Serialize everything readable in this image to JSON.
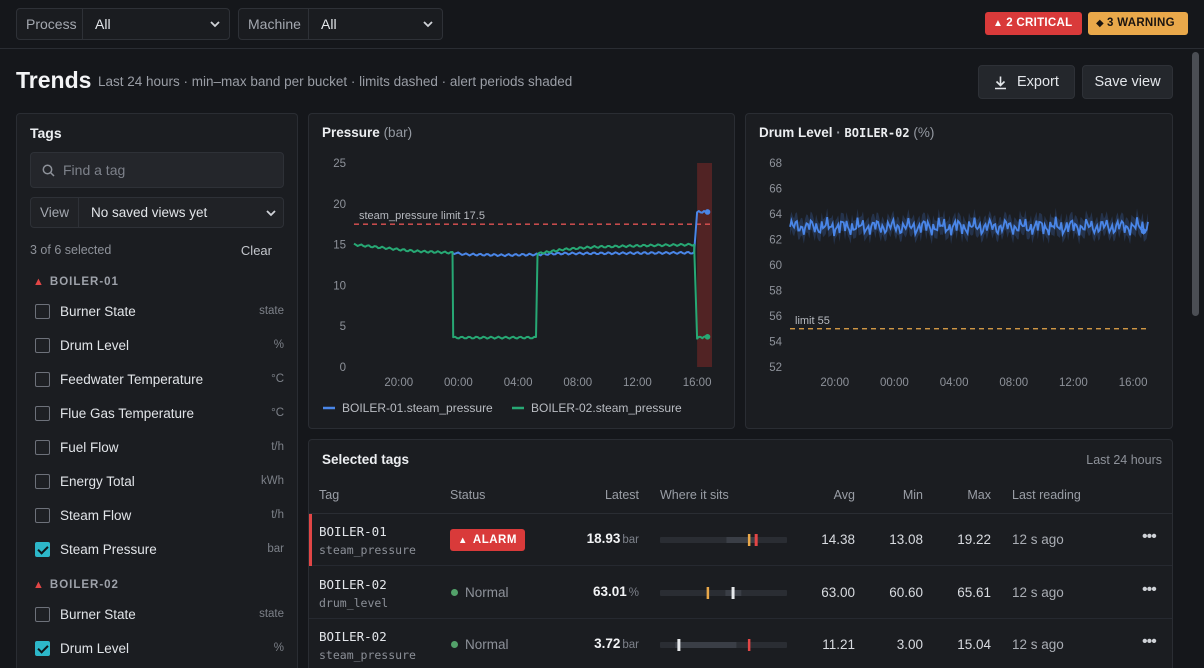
{
  "filters": {
    "process": {
      "label": "Process",
      "value": "All"
    },
    "machine": {
      "label": "Machine",
      "value": "All"
    }
  },
  "alerts": {
    "critical": "2 CRITICAL",
    "warning": "3 WARNING",
    "critical_color": "#d93a3a",
    "warning_color": "#e9a84a"
  },
  "header": {
    "title": "Trends",
    "subtitle": "Last 24 hours · min–max band per bucket · limits dashed · alert periods shaded",
    "export_label": "Export",
    "save_label": "Save view"
  },
  "tags_panel": {
    "title": "Tags",
    "search_placeholder": "Find a tag",
    "view_label": "View",
    "view_value": "No saved views yet",
    "selected_count": "3 of 6 selected",
    "clear_label": "Clear",
    "groups": [
      {
        "name": "BOILER-01",
        "tags": [
          {
            "name": "Burner State",
            "unit": "state",
            "checked": false
          },
          {
            "name": "Drum Level",
            "unit": "%",
            "checked": false
          },
          {
            "name": "Feedwater Temperature",
            "unit": "°C",
            "checked": false
          },
          {
            "name": "Flue Gas Temperature",
            "unit": "°C",
            "checked": false
          },
          {
            "name": "Fuel Flow",
            "unit": "t/h",
            "checked": false
          },
          {
            "name": "Energy Total",
            "unit": "kWh",
            "checked": false
          },
          {
            "name": "Steam Flow",
            "unit": "t/h",
            "checked": false
          },
          {
            "name": "Steam Pressure",
            "unit": "bar",
            "checked": true
          }
        ]
      },
      {
        "name": "BOILER-02",
        "tags": [
          {
            "name": "Burner State",
            "unit": "state",
            "checked": false
          },
          {
            "name": "Drum Level",
            "unit": "%",
            "checked": true
          }
        ]
      }
    ]
  },
  "chart_data": [
    {
      "type": "line",
      "title": "Pressure",
      "unit": "(bar)",
      "ylim": [
        0,
        25
      ],
      "yticks": [
        0,
        5,
        10,
        15,
        20,
        25
      ],
      "xlabels": [
        "20:00",
        "00:00",
        "04:00",
        "08:00",
        "12:00",
        "16:00"
      ],
      "x_hours_ticks": [
        20,
        24,
        28,
        32,
        36,
        40
      ],
      "xlim_hours": [
        17,
        41
      ],
      "limit": {
        "label": "steam_pressure limit 17.5",
        "value": 17.5,
        "color": "#e05252"
      },
      "alert_period_hours": [
        40.0,
        41.0
      ],
      "series": [
        {
          "name": "BOILER-01.steam_pressure",
          "color": "#4a86e8",
          "points": [
            [
              23.6,
              14.0
            ],
            [
              24.5,
              13.8
            ],
            [
              27,
              13.7
            ],
            [
              29.5,
              13.8
            ],
            [
              30.5,
              13.9
            ],
            [
              39.8,
              14.0
            ],
            [
              40.0,
              19.0
            ],
            [
              40.7,
              19.0
            ]
          ]
        },
        {
          "name": "BOILER-02.steam_pressure",
          "color": "#27a874",
          "points": [
            [
              17,
              15.0
            ],
            [
              19,
              14.6
            ],
            [
              21,
              14.2
            ],
            [
              23.6,
              14.0
            ],
            [
              23.65,
              3.6
            ],
            [
              29.2,
              3.6
            ],
            [
              29.3,
              13.9
            ],
            [
              31,
              14.4
            ],
            [
              33,
              14.7
            ],
            [
              35,
              14.8
            ],
            [
              37,
              14.9
            ],
            [
              39.8,
              15.0
            ],
            [
              40.0,
              3.6
            ],
            [
              40.7,
              3.7
            ]
          ]
        }
      ]
    },
    {
      "type": "line",
      "title": "Drum Level",
      "tag": "BOILER-02",
      "unit": "(%)",
      "ylim": [
        52,
        68
      ],
      "yticks": [
        52,
        54,
        56,
        58,
        60,
        62,
        64,
        66,
        68
      ],
      "xlabels": [
        "20:00",
        "00:00",
        "04:00",
        "08:00",
        "12:00",
        "16:00"
      ],
      "x_hours_ticks": [
        20,
        24,
        28,
        32,
        36,
        40
      ],
      "xlim_hours": [
        17,
        41
      ],
      "limit": {
        "label": "limit 55",
        "value": 55,
        "color": "#e9a84a"
      },
      "series": [
        {
          "name": "BOILER-02.drum_level",
          "color": "#4a86e8",
          "mean": 63.0,
          "min": 60.6,
          "max": 65.61
        }
      ]
    }
  ],
  "table": {
    "title": "Selected tags",
    "range": "Last 24 hours",
    "columns": [
      "Tag",
      "Status",
      "Latest",
      "Where it sits",
      "Avg",
      "Min",
      "Max",
      "Last reading"
    ],
    "rows": [
      {
        "machine": "BOILER-01",
        "tag": "steam_pressure",
        "status": "ALARM",
        "alarm": true,
        "latest": "18.93",
        "unit": "bar",
        "avg": "14.38",
        "min": "13.08",
        "max": "19.22",
        "last": "12 s ago",
        "range_min": 0,
        "range_max": 25,
        "band": [
          13.08,
          19.22
        ],
        "value": 18.93,
        "limit": 17.5
      },
      {
        "machine": "BOILER-02",
        "tag": "drum_level",
        "status": "Normal",
        "alarm": false,
        "latest": "63.01",
        "unit": "%",
        "avg": "63.00",
        "min": "60.60",
        "max": "65.61",
        "last": "12 s ago",
        "range_min": 40,
        "range_max": 80,
        "band": [
          60.6,
          65.61
        ],
        "value": 63.01,
        "limit": 55
      },
      {
        "machine": "BOILER-02",
        "tag": "steam_pressure",
        "status": "Normal",
        "alarm": false,
        "latest": "3.72",
        "unit": "bar",
        "avg": "11.21",
        "min": "3.00",
        "max": "15.04",
        "last": "12 s ago",
        "range_min": 0,
        "range_max": 25,
        "band": [
          3.0,
          15.04
        ],
        "value": 3.72,
        "limit": 17.5
      }
    ]
  }
}
